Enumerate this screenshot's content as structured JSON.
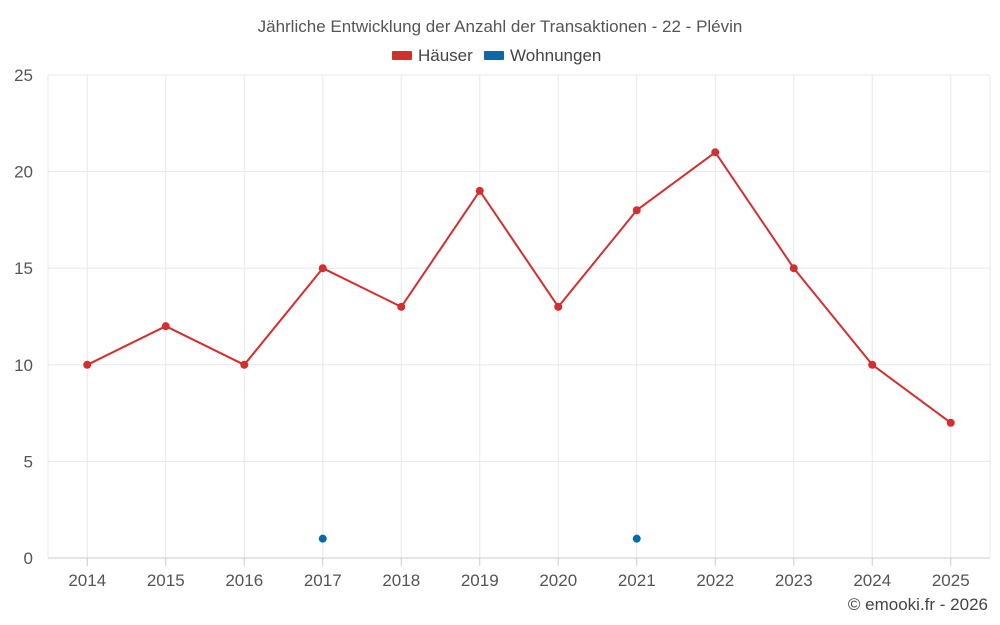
{
  "chart_data": {
    "type": "line",
    "title": "Jährliche Entwicklung der Anzahl der Transaktionen - 22 - Plévin",
    "categories": [
      "2014",
      "2015",
      "2016",
      "2017",
      "2018",
      "2019",
      "2020",
      "2021",
      "2022",
      "2023",
      "2024",
      "2025"
    ],
    "ylim": [
      0,
      25
    ],
    "yticks": [
      "0",
      "5",
      "10",
      "15",
      "20",
      "25"
    ],
    "grid": true,
    "legend_position": "top-center",
    "series": [
      {
        "name": "Häuser",
        "color": "#d32f2f",
        "values": [
          10,
          12,
          10,
          15,
          13,
          19,
          13,
          18,
          21,
          15,
          10,
          7
        ]
      },
      {
        "name": "Wohnungen",
        "color": "#0a6aa8",
        "values": [
          null,
          null,
          null,
          1,
          null,
          null,
          null,
          1,
          null,
          null,
          null,
          null
        ]
      }
    ],
    "credit": "© emooki.fr - 2026"
  }
}
